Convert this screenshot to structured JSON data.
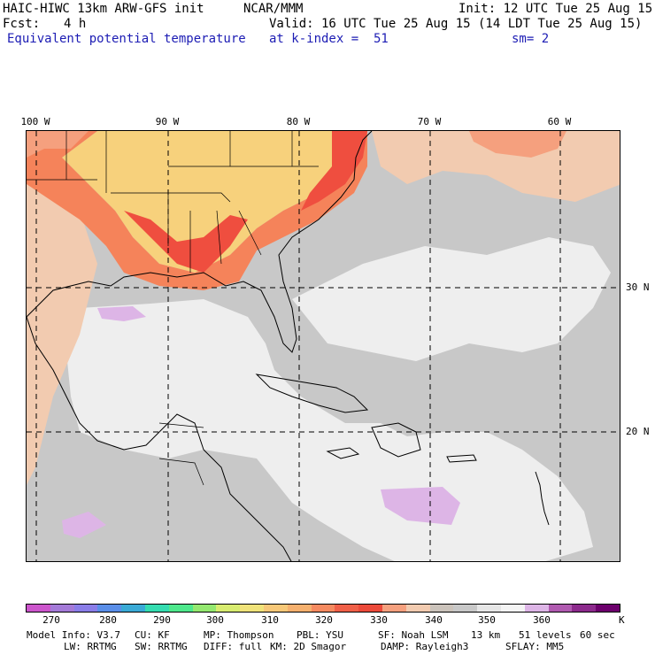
{
  "header": {
    "model_title": "HAIC-HIWC 13km ARW-GFS init",
    "source": "NCAR/MMM",
    "init_label": "Init: 12 UTC Tue 25 Aug 15",
    "fcst_label": "Fcst:",
    "fcst_value": "4 h",
    "valid_label": "Valid: 16 UTC Tue 25 Aug 15 (14 LDT Tue 25 Aug 15)",
    "field_name": "Equivalent potential temperature",
    "level_label": "at k-index =  51",
    "smoothing_label": "sm= 2"
  },
  "map": {
    "longitude_labels": [
      "100 W",
      "90 W",
      "80 W",
      "70 W",
      "60 W"
    ],
    "latitude_labels": [
      "30 N",
      "20 N"
    ],
    "colors": {
      "gray": "#c8c8c8",
      "light": "#eeeeee",
      "peach": "#f2cbb0",
      "salmon": "#f5a07e",
      "orange": "#f5835a",
      "red": "#ef4e3f",
      "yellow": "#f7d17c",
      "lavender": "#ddb5e6",
      "coast": "#000000"
    }
  },
  "colorbar": {
    "colors": [
      "#cc55cc",
      "#a47ad8",
      "#8a7de8",
      "#5a8ee8",
      "#3aaad6",
      "#35dcb0",
      "#4ee88c",
      "#94e870",
      "#d8ec70",
      "#f0e37a",
      "#f7c878",
      "#f5b06e",
      "#f58a60",
      "#f06048",
      "#ec4a3a",
      "#f5a07e",
      "#f2cbb0",
      "#cbc3bb",
      "#c8c8c8",
      "#e6e6e6",
      "#f4f4f4",
      "#ddb5e6",
      "#b05ab0",
      "#8c2a8c",
      "#6c006c"
    ],
    "tick_labels": [
      "270",
      "280",
      "290",
      "300",
      "310",
      "320",
      "330",
      "340",
      "350",
      "360"
    ],
    "unit": "K"
  },
  "footer": {
    "line1": {
      "model_info": "Model Info: V3.7",
      "cu": "CU: KF",
      "mp": "MP: Thompson",
      "pbl": "PBL: YSU",
      "sf": "SF: Noah LSM",
      "res": "13 km",
      "levels": "51 levels",
      "dt": "60 sec"
    },
    "line2": {
      "lw": "LW: RRTMG",
      "sw": "SW: RRTMG",
      "diff": "DIFF: full",
      "km": "KM: 2D Smagor",
      "damp": "DAMP: Rayleigh3",
      "sflay": "SFLAY: MM5"
    }
  }
}
